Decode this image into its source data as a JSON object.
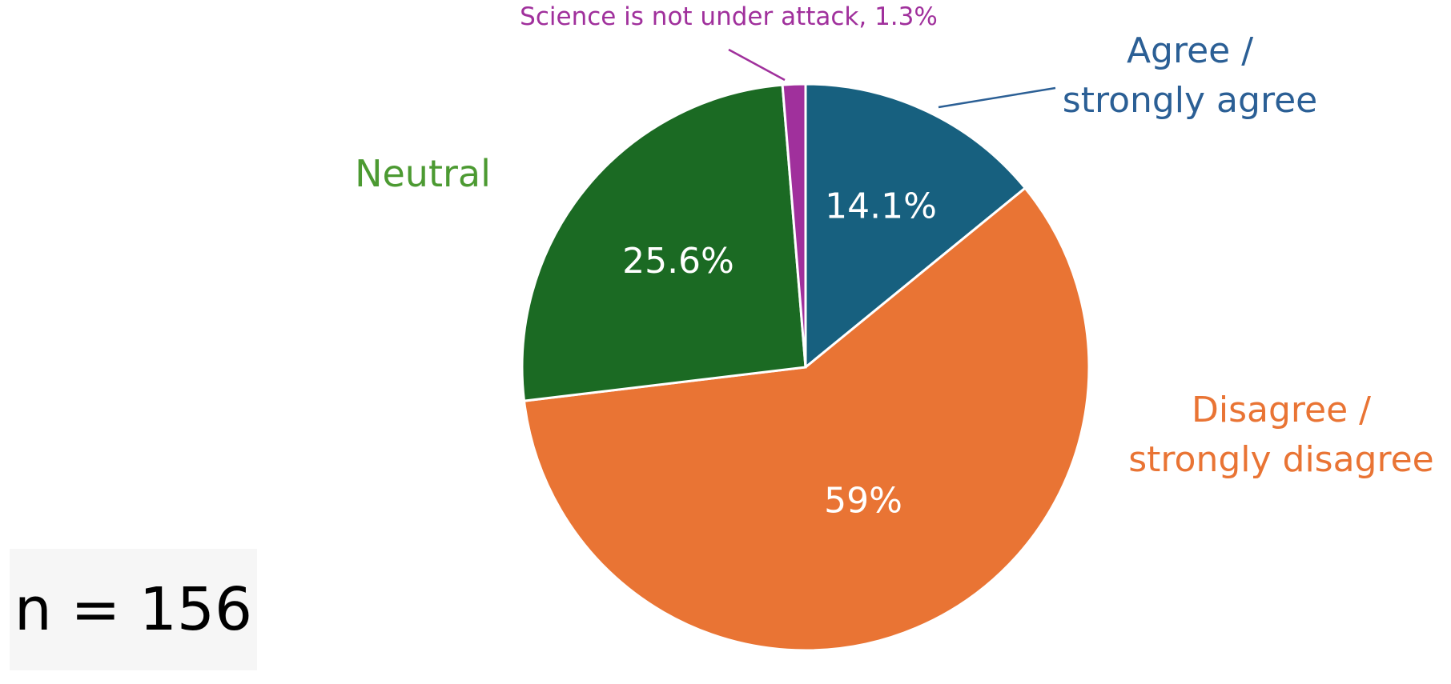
{
  "chart_data": {
    "type": "pie",
    "slices": [
      {
        "label_lines": [
          "Agree /",
          "strongly agree"
        ],
        "value": 14.1,
        "value_label": "14.1%",
        "color": "#17607f"
      },
      {
        "label_lines": [
          "Disagree /",
          "strongly disagree"
        ],
        "value": 59.0,
        "value_label": "59%",
        "color": "#e97434"
      },
      {
        "label_lines": [
          "Neutral"
        ],
        "value": 25.6,
        "value_label": "25.6%",
        "color": "#1b6a23"
      },
      {
        "label_lines": [
          "Science is not under attack, 1.3%"
        ],
        "value": 1.3,
        "value_label": "",
        "color": "#a0309c"
      }
    ],
    "label_colors": [
      "#2b5f95",
      "#e97434",
      "#4c9a32",
      "#a0309c"
    ],
    "start_angle_deg": 0,
    "direction": "clockwise"
  },
  "sample_size": "n = 156"
}
